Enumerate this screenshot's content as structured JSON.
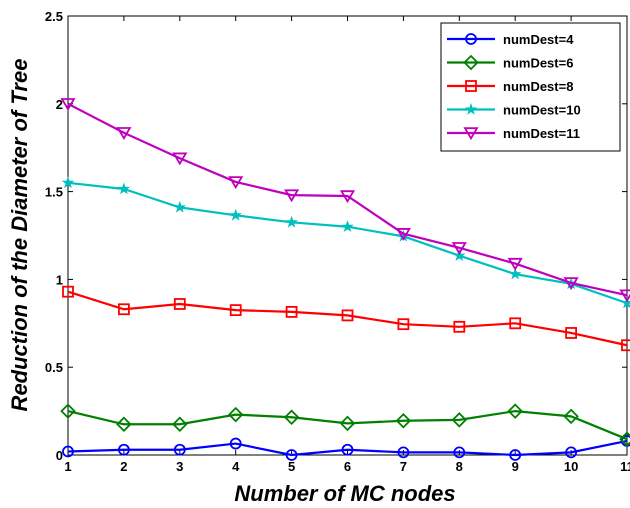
{
  "chart_data": {
    "type": "line",
    "title": "",
    "xlabel": "Number of MC nodes",
    "ylabel": "Reduction of the Diameter of Tree",
    "x": [
      1,
      2,
      3,
      4,
      5,
      6,
      7,
      8,
      9,
      10,
      11
    ],
    "xlim": [
      1,
      11
    ],
    "ylim": [
      0,
      2.5
    ],
    "xticks": [
      "1",
      "2",
      "3",
      "4",
      "5",
      "6",
      "7",
      "8",
      "9",
      "10",
      "11"
    ],
    "yticks": [
      "0",
      "0.5",
      "1",
      "1.5",
      "2",
      "2.5"
    ],
    "grid": false,
    "legend_position": "top-right",
    "series": [
      {
        "name": "numDest=4",
        "color": "#0000ff",
        "marker": "circle",
        "values": [
          0.02,
          0.03,
          0.03,
          0.065,
          0.0,
          0.03,
          0.015,
          0.015,
          0.0,
          0.015,
          0.08
        ]
      },
      {
        "name": "numDest=6",
        "color": "#008000",
        "marker": "diamond",
        "values": [
          0.25,
          0.175,
          0.175,
          0.23,
          0.215,
          0.18,
          0.195,
          0.2,
          0.25,
          0.22,
          0.09
        ]
      },
      {
        "name": "numDest=8",
        "color": "#ff0000",
        "marker": "square",
        "values": [
          0.93,
          0.83,
          0.86,
          0.825,
          0.815,
          0.795,
          0.745,
          0.73,
          0.75,
          0.695,
          0.625
        ]
      },
      {
        "name": "numDest=10",
        "color": "#00bfbf",
        "marker": "star",
        "values": [
          1.55,
          1.515,
          1.41,
          1.365,
          1.325,
          1.3,
          1.245,
          1.135,
          1.03,
          0.975,
          0.865
        ]
      },
      {
        "name": "numDest=11",
        "color": "#bf00bf",
        "marker": "triangle-down",
        "values": [
          2.0,
          1.835,
          1.69,
          1.555,
          1.48,
          1.475,
          1.26,
          1.18,
          1.09,
          0.98,
          0.91
        ]
      }
    ]
  }
}
